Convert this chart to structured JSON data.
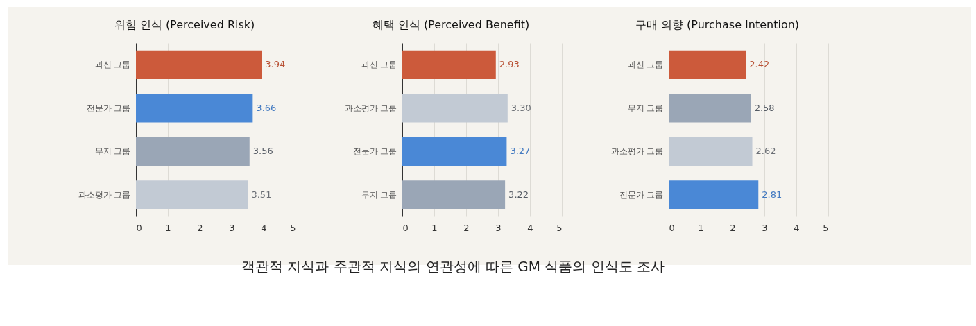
{
  "chart_data": [
    {
      "type": "bar",
      "orientation": "horizontal",
      "title": "위험 인식 (Perceived Risk)",
      "categories": [
        "과신 그룹",
        "전문가 그룹",
        "무지 그룹",
        "과소평가 그룹"
      ],
      "values": [
        3.94,
        3.66,
        3.56,
        3.51
      ],
      "colors": [
        "#cc5a3b",
        "#4a88d6",
        "#9aa6b6",
        "#c2cad4"
      ],
      "xlim": [
        0,
        5
      ],
      "xticks": [
        0,
        1,
        2,
        3,
        4,
        5
      ],
      "grid": "x",
      "data_labels": true
    },
    {
      "type": "bar",
      "orientation": "horizontal",
      "title": "혜택 인식 (Perceived Benefit)",
      "categories": [
        "과신 그룹",
        "과소평가 그룹",
        "전문가 그룹",
        "무지 그룹"
      ],
      "values": [
        2.93,
        3.3,
        3.27,
        3.22
      ],
      "value_labels": [
        "2.93",
        "3.30",
        "3.27",
        "3.22"
      ],
      "colors": [
        "#cc5a3b",
        "#c2cad4",
        "#4a88d6",
        "#9aa6b6"
      ],
      "xlim": [
        0,
        5
      ],
      "xticks": [
        0,
        1,
        2,
        3,
        4,
        5
      ],
      "grid": "x"
    },
    {
      "type": "bar",
      "orientation": "horizontal",
      "title": "구매 의향 (Purchase Intention)",
      "categories": [
        "과신 그룹",
        "무지 그룹",
        "과소평가 그룹",
        "전문가 그룹"
      ],
      "values": [
        2.42,
        2.58,
        2.62,
        2.81
      ],
      "colors": [
        "#cc5a3b",
        "#9aa6b6",
        "#c2cad4",
        "#4a88d6"
      ],
      "xlim": [
        0,
        5
      ],
      "xticks": [
        0,
        1,
        2,
        3,
        4,
        5
      ],
      "grid": "x",
      "data_labels": true,
      "annotations": [
        "객관적 지식과 주관적 지식의 연관성에 따른 GM 식품의 인식도 조사"
      ]
    }
  ]
}
